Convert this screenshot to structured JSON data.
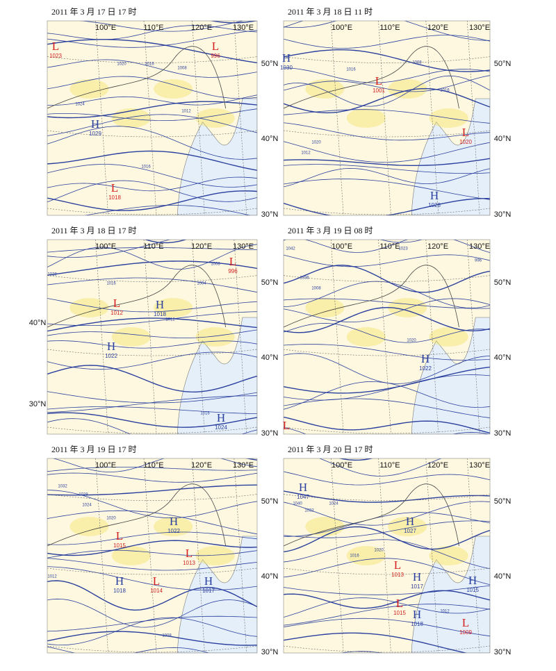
{
  "panels": [
    {
      "title": "2011 年 3 月 17 日 17 时",
      "lon_labels": [
        "100°E",
        "110°E",
        "120°E",
        "130°E"
      ],
      "lat_labels": [
        "50°N",
        "40°N",
        "30°N"
      ],
      "centers": [
        {
          "type": "L",
          "value": 1023
        },
        {
          "type": "L",
          "value": 996
        },
        {
          "type": "H",
          "value": 1029
        },
        {
          "type": "L",
          "value": 1018
        }
      ],
      "isobar_labels": [
        "1020",
        "1016",
        "1024",
        "1008",
        "1012",
        "1016"
      ]
    },
    {
      "title": "2011 年 3 月 18 日 11 时",
      "lon_labels": [
        "100°E",
        "110°E",
        "120°E",
        "130°E"
      ],
      "lat_labels": [
        "50°N",
        "40°N",
        "30°N"
      ],
      "centers": [
        {
          "type": "H",
          "value": 1030
        },
        {
          "type": "L",
          "value": 1001
        },
        {
          "type": "L",
          "value": 1020
        },
        {
          "type": "H",
          "value": 1028
        }
      ],
      "isobar_labels": [
        "1016",
        "1012",
        "1020",
        "1008",
        "1016"
      ]
    },
    {
      "title": "2011 年 3 月 18 日 17 时",
      "lon_labels": [
        "100°E",
        "110°E",
        "120°E",
        "130°E"
      ],
      "lat_labels": [
        "50°N",
        "40°N",
        "30°N"
      ],
      "left_lat_labels": [
        "40°N",
        "30°N"
      ],
      "centers": [
        {
          "type": "L",
          "value": 996
        },
        {
          "type": "L",
          "value": 1012
        },
        {
          "type": "H",
          "value": 1018
        },
        {
          "type": "H",
          "value": 1022
        },
        {
          "type": "H",
          "value": 1024
        }
      ],
      "isobar_labels": [
        "1028",
        "1016",
        "1004",
        "1008",
        "1012",
        "1016"
      ]
    },
    {
      "title": "2011 年 3 月 19 日 08 时",
      "lon_labels": [
        "100°E",
        "110°E",
        "120°E",
        "130°E"
      ],
      "lat_labels": [
        "50°N",
        "40°N",
        "30°N"
      ],
      "centers": [
        {
          "type": "H",
          "value": 1022
        },
        {
          "type": "L"
        }
      ],
      "isobar_labels": [
        "1042",
        "1023",
        "996",
        "1036",
        "1008",
        "1020"
      ]
    },
    {
      "title": "2011 年 3 月 19 日 17 时",
      "lon_labels": [
        "100°E",
        "110°E",
        "120°E",
        "130°E"
      ],
      "lat_labels": [
        "50°N",
        "40°N",
        "30°N"
      ],
      "centers": [
        {
          "type": "H",
          "value": 1022
        },
        {
          "type": "L",
          "value": 1015
        },
        {
          "type": "L",
          "value": 1013
        },
        {
          "type": "H",
          "value": 1018
        },
        {
          "type": "L",
          "value": 1014
        },
        {
          "type": "H",
          "value": 1017
        }
      ],
      "isobar_labels": [
        "1032",
        "1028",
        "1024",
        "1020",
        "1012",
        "1008"
      ]
    },
    {
      "title": "2011 年 3 月 20 日 17 时",
      "lon_labels": [
        "100°E",
        "110°E",
        "120°E",
        "130°E"
      ],
      "lat_labels": [
        "50°N",
        "40°N",
        "30°N"
      ],
      "centers": [
        {
          "type": "H",
          "value": 1047
        },
        {
          "type": "H",
          "value": 1027
        },
        {
          "type": "L",
          "value": 1013
        },
        {
          "type": "H",
          "value": 1017
        },
        {
          "type": "H",
          "value": 1015
        },
        {
          "type": "L",
          "value": 1015
        },
        {
          "type": "H",
          "value": 1018
        },
        {
          "type": "L",
          "value": 1009
        }
      ],
      "isobar_labels": [
        "1040",
        "1032",
        "1024",
        "1020",
        "1016",
        "1012"
      ]
    }
  ]
}
